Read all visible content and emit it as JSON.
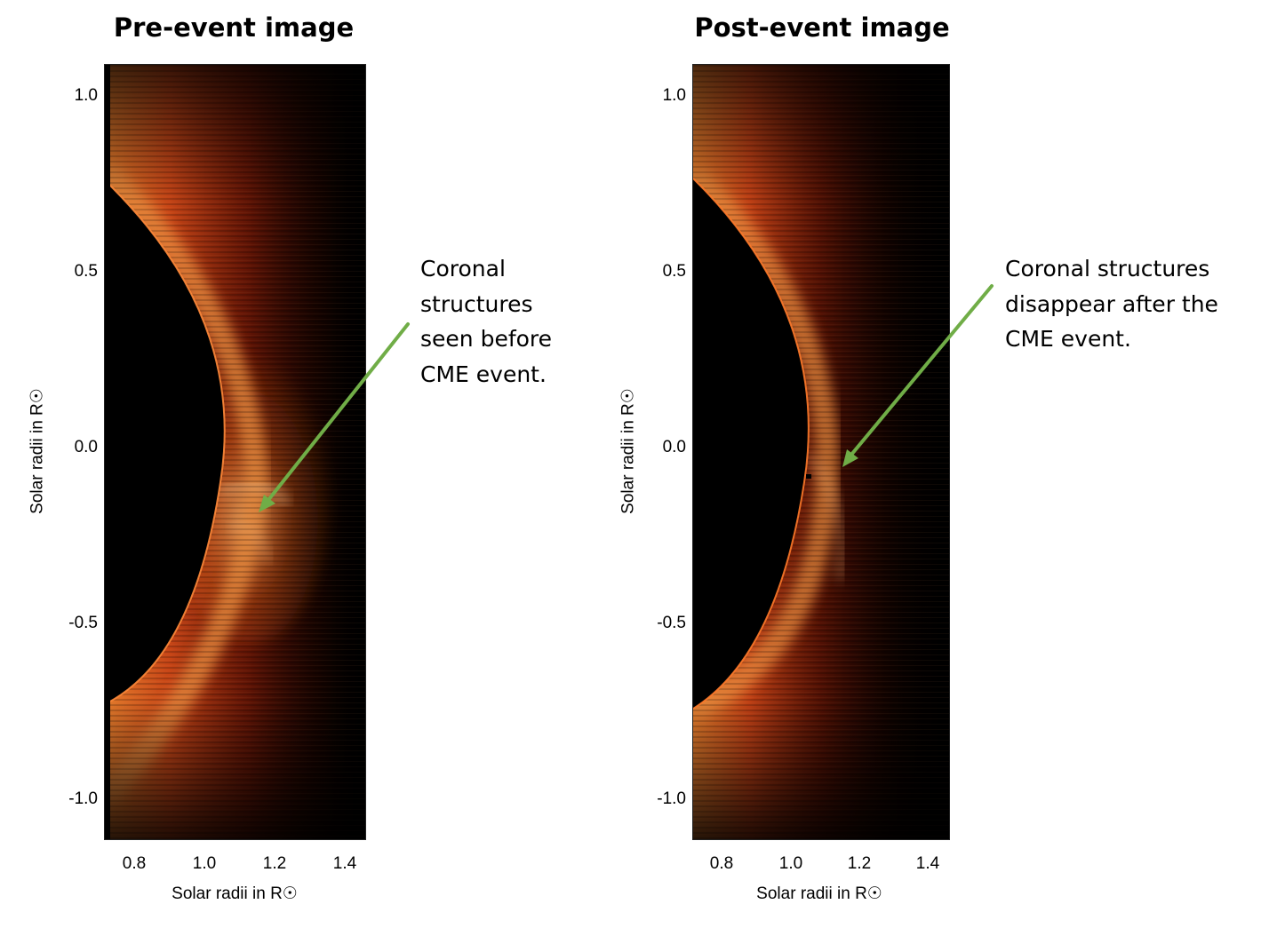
{
  "panels": [
    {
      "title": "Pre-event image",
      "annotation": [
        "Coronal",
        "structures",
        "seen before",
        "CME event."
      ],
      "xlabel": "Solar radii in R☉",
      "ylabel": "Solar radii in R☉",
      "xticks": [
        "0.8",
        "1.0",
        "1.2",
        "1.4"
      ],
      "yticks": [
        "1.0",
        "0.5",
        "0.0",
        "-0.5",
        "-1.0"
      ]
    },
    {
      "title": "Post-event image",
      "annotation": [
        "Coronal structures",
        "disappear after the",
        "CME event."
      ],
      "xlabel": "Solar radii in R☉",
      "ylabel": "Solar radii in R☉",
      "xticks": [
        "0.8",
        "1.0",
        "1.2",
        "1.4"
      ],
      "yticks": [
        "1.0",
        "0.5",
        "0.0",
        "-0.5",
        "-1.0"
      ]
    }
  ],
  "colors": {
    "arrow": "#70ad47",
    "background": "#000000",
    "corona_bright": "#ffb46a",
    "corona_mid": "#e04a10",
    "corona_dark": "#5a0e00"
  }
}
